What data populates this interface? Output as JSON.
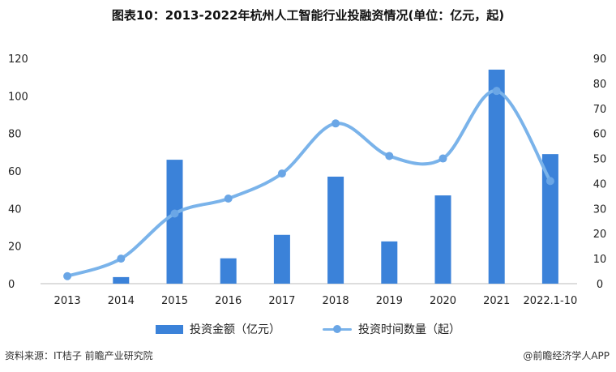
{
  "chart_data": {
    "type": "bar+line",
    "title": "图表10：2013-2022年杭州人工智能行业投融资情况(单位：亿元，起)",
    "categories": [
      "2013",
      "2014",
      "2015",
      "2016",
      "2017",
      "2018",
      "2019",
      "2020",
      "2021",
      "2022.1-10"
    ],
    "series": [
      {
        "name": "投资金额（亿元）",
        "type": "bar",
        "axis": "left",
        "color": "#3b82d9",
        "values": [
          0,
          3.5,
          66,
          13.5,
          26,
          57,
          22.5,
          47,
          114,
          69
        ]
      },
      {
        "name": "投资时间数量（起）",
        "type": "line",
        "axis": "right",
        "color": "#7ab3ea",
        "values": [
          3,
          10,
          28,
          34,
          44,
          64,
          51,
          50,
          77,
          41
        ]
      }
    ],
    "left_axis": {
      "ticks": [
        "0",
        "20",
        "40",
        "60",
        "80",
        "100",
        "120"
      ],
      "ylim": [
        0,
        120
      ]
    },
    "right_axis": {
      "ticks": [
        "0",
        "10",
        "20",
        "30",
        "40",
        "50",
        "60",
        "70",
        "80",
        "90"
      ],
      "ylim": [
        0,
        90
      ]
    },
    "grid": false,
    "legend": "bottom"
  },
  "footer": {
    "source": "资料来源：IT桔子 前瞻产业研究院",
    "brand": "@前瞻经济学人APP"
  }
}
